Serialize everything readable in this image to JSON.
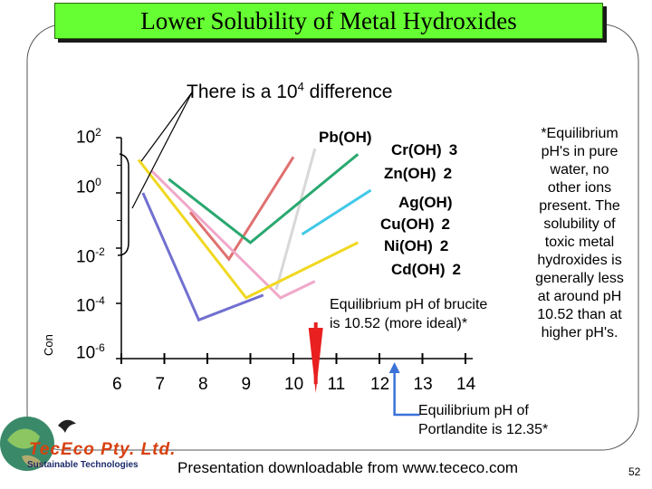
{
  "title": "Lower Solubility of Metal Hydroxides",
  "difference_note": "There is a 10",
  "difference_note_exp": "4",
  "difference_note_tail": " difference",
  "side_note": [
    "*Equilibrium",
    "pH's in pure",
    "water, no",
    "other ions",
    "present. The",
    "solubility of",
    "toxic metal",
    "hydroxides is",
    "generally less",
    "at around pH",
    "10.52 than at",
    "higher pH's."
  ],
  "brucite_note": [
    "Equilibrium pH of brucite",
    "is 10.52 (more ideal)*"
  ],
  "portlandite_note": [
    "Equilibrium pH of",
    "Portlandite is 12.35*"
  ],
  "footer": "Presentation downloadable from www.tececo.com",
  "page_number": "52",
  "company_name": "TecEco Pty. Ltd.",
  "company_tagline": "Sustainable Technologies",
  "y_axis_label_partial": "Con",
  "colors": {
    "title_bg": "#66ff33",
    "arrow_brucite": "#e82020",
    "arrow_portlandite": "#3a72d8"
  },
  "chart_data": {
    "type": "line",
    "title": "Lower Solubility of Metal Hydroxides",
    "xlabel": "",
    "ylabel": "Con",
    "y_scale": "log",
    "x_ticks": [
      "6",
      "7",
      "8",
      "9",
      "10",
      "11",
      "12",
      "13",
      "14"
    ],
    "y_ticks": [
      {
        "base": "10",
        "exp": "2"
      },
      {
        "base": "10",
        "exp": "0"
      },
      {
        "base": "10",
        "exp": "-2"
      },
      {
        "base": "10",
        "exp": "-4"
      },
      {
        "base": "10",
        "exp": "-6"
      }
    ],
    "xlim": [
      6,
      14
    ],
    "ylim": [
      -6,
      2
    ],
    "series_labels": [
      {
        "name": "Pb(OH)",
        "sub": "",
        "color": "#000000"
      },
      {
        "name": "Cr(OH)",
        "sub": "3",
        "color": "#000000"
      },
      {
        "name": "Zn(OH)",
        "sub": "2",
        "color": "#000000"
      },
      {
        "name": "Ag(OH)",
        "sub": "",
        "color": "#000000"
      },
      {
        "name": "Cu(OH)",
        "sub": "2",
        "color": "#000000"
      },
      {
        "name": "Ni(OH)",
        "sub": "2",
        "color": "#000000"
      },
      {
        "name": "Cd(OH)",
        "sub": "2",
        "color": "#000000"
      }
    ],
    "series": [
      {
        "name": "Pb(OH)",
        "color": "#d8d8d8",
        "points": [
          [
            9.6,
            -3.5
          ],
          [
            10.5,
            1.6
          ]
        ]
      },
      {
        "name": "Cr(OH)3",
        "color": "#e07070",
        "points": [
          [
            7.6,
            -0.7
          ],
          [
            8.5,
            -2.4
          ],
          [
            10.0,
            1.3
          ]
        ]
      },
      {
        "name": "Zn(OH)2",
        "color": "#2aa870",
        "points": [
          [
            7.1,
            0.5
          ],
          [
            9.0,
            -1.8
          ],
          [
            11.5,
            1.4
          ]
        ]
      },
      {
        "name": "Ag(OH)",
        "color": "#40c8e8",
        "points": [
          [
            10.2,
            -1.5
          ],
          [
            11.8,
            0.1
          ]
        ]
      },
      {
        "name": "Cu(OH)2",
        "color": "#7070d0",
        "points": [
          [
            6.5,
            0.0
          ],
          [
            7.8,
            -4.6
          ],
          [
            9.3,
            -3.7
          ]
        ]
      },
      {
        "name": "Ni(OH)2",
        "color": "#f0a8c8",
        "points": [
          [
            6.7,
            0.8
          ],
          [
            9.7,
            -3.8
          ],
          [
            10.5,
            -3.2
          ]
        ]
      },
      {
        "name": "Cd(OH)2",
        "color": "#f0d820",
        "points": [
          [
            6.4,
            1.2
          ],
          [
            8.9,
            -3.8
          ],
          [
            11.5,
            -1.8
          ]
        ]
      }
    ]
  }
}
